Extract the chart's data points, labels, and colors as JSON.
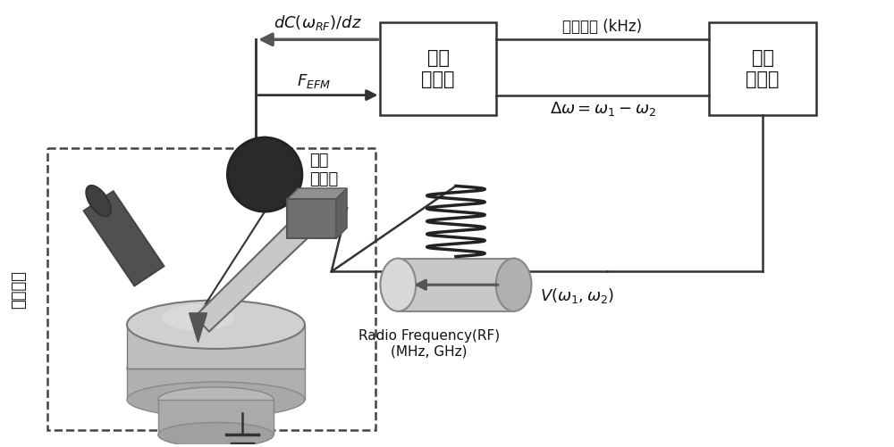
{
  "bg_color": "#ffffff",
  "fig_width": 10.0,
  "fig_height": 5.01,
  "dpi": 100,
  "box1_label_line1": "锁相",
  "box1_label_line2": "放大器",
  "box2_label_line1": "信号",
  "box2_label_line2": "发生器",
  "label_dc": "dC(ω$_{RF}$)/dz",
  "label_fefm": "$F_{EFM}$",
  "label_diff_freq_line1": "差频信号 (kHz)",
  "label_diff_freq_line2": "$\\Delta\\omega= \\omega_1 - \\omega_2$",
  "label_rf_line1": "Radio Frequency(RF)",
  "label_rf_line2": "(MHz, GHz)",
  "label_v": "$V(\\omega_1, \\omega_2)$",
  "label_photodiode_line1": "光电",
  "label_photodiode_line2": "二极管",
  "label_morphology": "形貌成像",
  "line_color": "#333333",
  "box_fill": "#ffffff",
  "box_edge": "#333333",
  "dashed_rect_color": "#444444",
  "text_color": "#111111"
}
